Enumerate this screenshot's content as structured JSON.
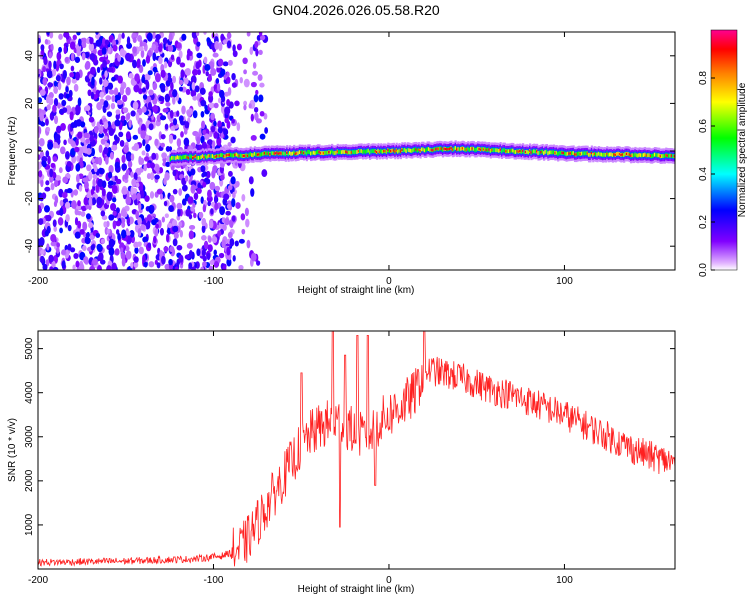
{
  "chart_data": [
    {
      "type": "heatmap",
      "title": "GN04.2026.026.05.58.R20",
      "xlabel": "Height of straight line (km)",
      "ylabel": "Frequency (Hz)",
      "xlim": [
        -200,
        163
      ],
      "ylim": [
        -50,
        50
      ],
      "x_ticks": [
        -200,
        -100,
        0,
        100
      ],
      "x_tick_labels": [
        "-200",
        "-100",
        "0",
        "100"
      ],
      "y_ticks": [
        40,
        20,
        0,
        -20,
        -40
      ],
      "y_tick_labels": [
        "40",
        "20",
        "0",
        "-20",
        "-40"
      ],
      "colorbar": {
        "label": "Normalized spectral amplitude",
        "range": [
          0,
          1
        ],
        "ticks": [
          0.0,
          0.2,
          0.4,
          0.6,
          0.8
        ],
        "tick_labels": [
          "0.0",
          "0.2",
          "0.4",
          "0.6",
          "0.8"
        ],
        "colors": [
          "#ffffff",
          "#c080ff",
          "#8000ff",
          "#0000ff",
          "#00ffff",
          "#00ff00",
          "#ffff00",
          "#ff8000",
          "#ff0000",
          "#ff00a0"
        ]
      },
      "regions": [
        {
          "description": "broadband noise",
          "x_range": [
            -200,
            -88
          ],
          "y_range": [
            -50,
            50
          ],
          "amplitude": 0.15
        },
        {
          "description": "narrow echo band near 0 Hz",
          "x_range": [
            -125,
            163
          ],
          "center_hz": [
            -3,
            -1,
            0,
            1,
            -1,
            -2
          ],
          "center_x": [
            -125,
            -60,
            0,
            40,
            100,
            163
          ],
          "amplitude_peak": 0.95
        }
      ],
      "grid": false
    },
    {
      "type": "line",
      "xlabel": "Height of straight line (km)",
      "ylabel": "SNR (10 * v/v)",
      "xlim": [
        -200,
        163
      ],
      "ylim": [
        0,
        5400
      ],
      "x_ticks": [
        -200,
        -100,
        0,
        100
      ],
      "x_tick_labels": [
        "-200",
        "-100",
        "0",
        "100"
      ],
      "y_ticks": [
        1000,
        2000,
        3000,
        4000,
        5000
      ],
      "y_tick_labels": [
        "1000",
        "2000",
        "3000",
        "4000",
        "5000"
      ],
      "color": "#ff2020",
      "envelope": {
        "x": [
          -200,
          -150,
          -110,
          -95,
          -85,
          -80,
          -75,
          -70,
          -65,
          -60,
          -55,
          -50,
          -45,
          -40,
          -35,
          -30,
          -25,
          -20,
          -15,
          -10,
          -5,
          0,
          5,
          10,
          15,
          20,
          25,
          30,
          40,
          50,
          60,
          70,
          80,
          90,
          100,
          110,
          120,
          130,
          140,
          150,
          163
        ],
        "y": [
          150,
          180,
          230,
          300,
          450,
          700,
          1050,
          1400,
          1750,
          2100,
          2450,
          2800,
          3050,
          3200,
          3300,
          3350,
          3300,
          3100,
          3000,
          3100,
          3350,
          3500,
          3650,
          3800,
          4000,
          4500,
          4500,
          4450,
          4350,
          4200,
          4050,
          3950,
          3800,
          3650,
          3500,
          3300,
          3100,
          2900,
          2700,
          2550,
          2400
        ]
      },
      "spikes": [
        {
          "x": -50,
          "y": 4450
        },
        {
          "x": -32,
          "y": 5400
        },
        {
          "x": -28,
          "y": 950
        },
        {
          "x": -25,
          "y": 4850
        },
        {
          "x": -18,
          "y": 5300
        },
        {
          "x": -12,
          "y": 5300
        },
        {
          "x": -8,
          "y": 1900
        },
        {
          "x": 20,
          "y": 5400
        }
      ],
      "grid": false
    }
  ]
}
